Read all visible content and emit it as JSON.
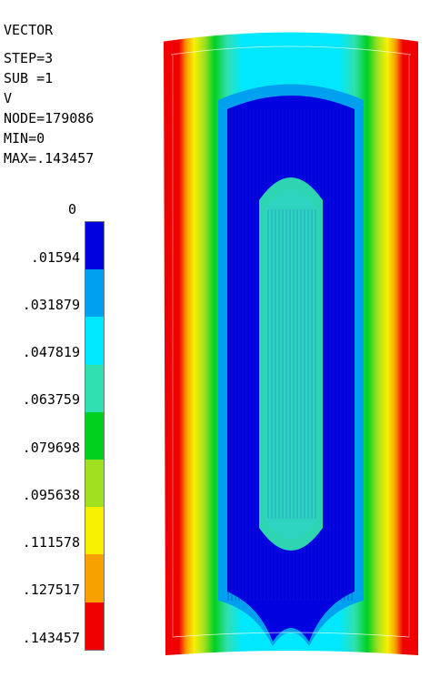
{
  "info": {
    "line1": "VECTOR",
    "line2": "STEP=3",
    "line3": "SUB =1",
    "line4": "V",
    "line5": "NODE=179086",
    "line6": "MIN=0",
    "line7": "MAX=.143457"
  },
  "legend": {
    "zero_label": "0",
    "labels": [
      ".01594",
      ".031879",
      ".047819",
      ".063759",
      ".079698",
      ".095638",
      ".111578",
      ".127517",
      ".143457"
    ],
    "colors": [
      "#0000e0",
      "#00a0f0",
      "#00e8ff",
      "#30e0b0",
      "#00d020",
      "#a0e020",
      "#f8f000",
      "#f8a000",
      "#f00000"
    ]
  }
}
